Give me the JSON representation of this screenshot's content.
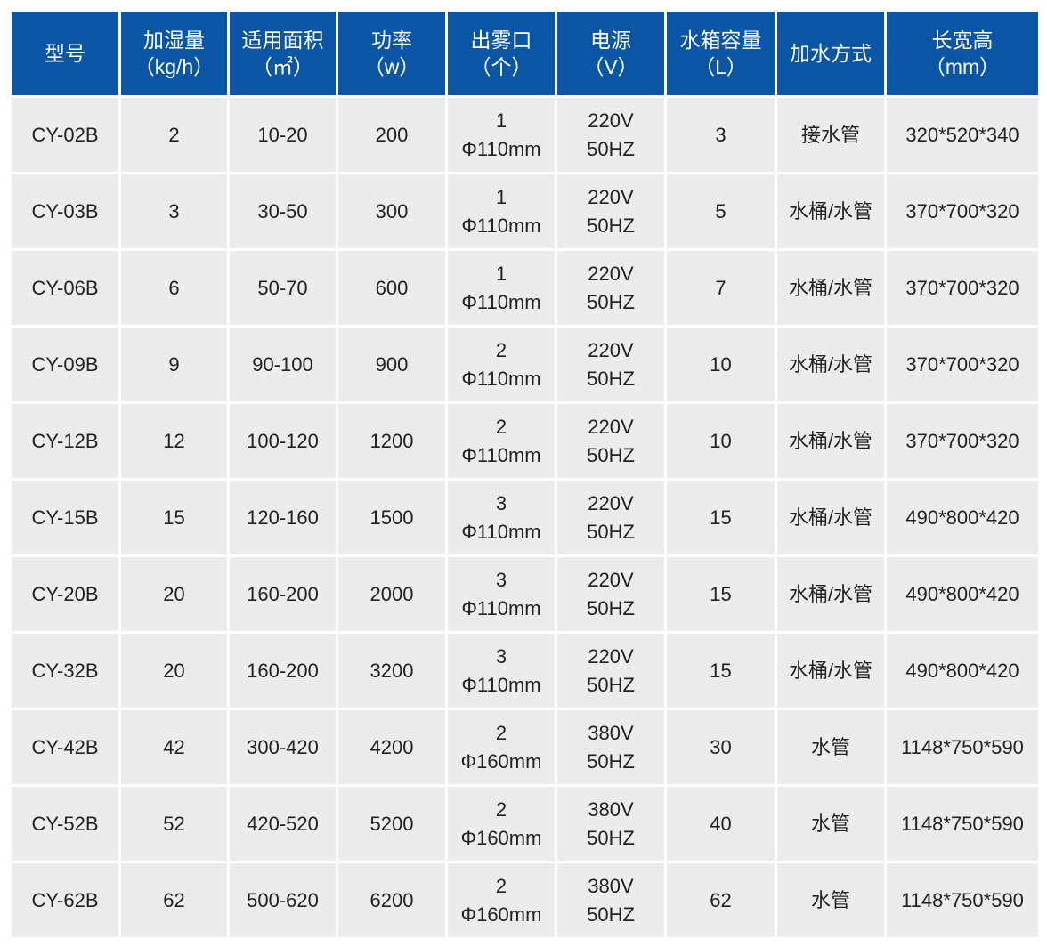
{
  "colors": {
    "header_bg": "#0a56a4",
    "header_text": "#ffffff",
    "cell_bg": "#ececec"
  },
  "headers": [
    {
      "l1": "型号",
      "l2": ""
    },
    {
      "l1": "加湿量",
      "l2": "（kg/h）"
    },
    {
      "l1": "适用面积",
      "l2": "（㎡）"
    },
    {
      "l1": "功率",
      "l2": "（w）"
    },
    {
      "l1": "出雾口",
      "l2": "（个）"
    },
    {
      "l1": "电源",
      "l2": "（V）"
    },
    {
      "l1": "水箱容量",
      "l2": "（L）"
    },
    {
      "l1": "加水方式",
      "l2": ""
    },
    {
      "l1": "长宽高",
      "l2": "（mm）"
    }
  ],
  "rows": [
    [
      "CY-02B",
      "2",
      "10-20",
      "200",
      "1",
      "Φ110mm",
      "220V",
      "50HZ",
      "3",
      "接水管",
      "320*520*340"
    ],
    [
      "CY-03B",
      "3",
      "30-50",
      "300",
      "1",
      "Φ110mm",
      "220V",
      "50HZ",
      "5",
      "水桶/水管",
      "370*700*320"
    ],
    [
      "CY-06B",
      "6",
      "50-70",
      "600",
      "1",
      "Φ110mm",
      "220V",
      "50HZ",
      "7",
      "水桶/水管",
      "370*700*320"
    ],
    [
      "CY-09B",
      "9",
      "90-100",
      "900",
      "2",
      "Φ110mm",
      "220V",
      "50HZ",
      "10",
      "水桶/水管",
      "370*700*320"
    ],
    [
      "CY-12B",
      "12",
      "100-120",
      "1200",
      "2",
      "Φ110mm",
      "220V",
      "50HZ",
      "10",
      "水桶/水管",
      "370*700*320"
    ],
    [
      "CY-15B",
      "15",
      "120-160",
      "1500",
      "3",
      "Φ110mm",
      "220V",
      "50HZ",
      "15",
      "水桶/水管",
      "490*800*420"
    ],
    [
      "CY-20B",
      "20",
      "160-200",
      "2000",
      "3",
      "Φ110mm",
      "220V",
      "50HZ",
      "15",
      "水桶/水管",
      "490*800*420"
    ],
    [
      "CY-32B",
      "20",
      "160-200",
      "3200",
      "3",
      "Φ110mm",
      "220V",
      "50HZ",
      "15",
      "水桶/水管",
      "490*800*420"
    ],
    [
      "CY-42B",
      "42",
      "300-420",
      "4200",
      "2",
      "Φ160mm",
      "380V",
      "50HZ",
      "30",
      "水管",
      "1148*750*590"
    ],
    [
      "CY-52B",
      "52",
      "420-520",
      "5200",
      "2",
      "Φ160mm",
      "380V",
      "50HZ",
      "40",
      "水管",
      "1148*750*590"
    ],
    [
      "CY-62B",
      "62",
      "500-620",
      "6200",
      "2",
      "Φ160mm",
      "380V",
      "50HZ",
      "62",
      "水管",
      "1148*750*590"
    ]
  ]
}
